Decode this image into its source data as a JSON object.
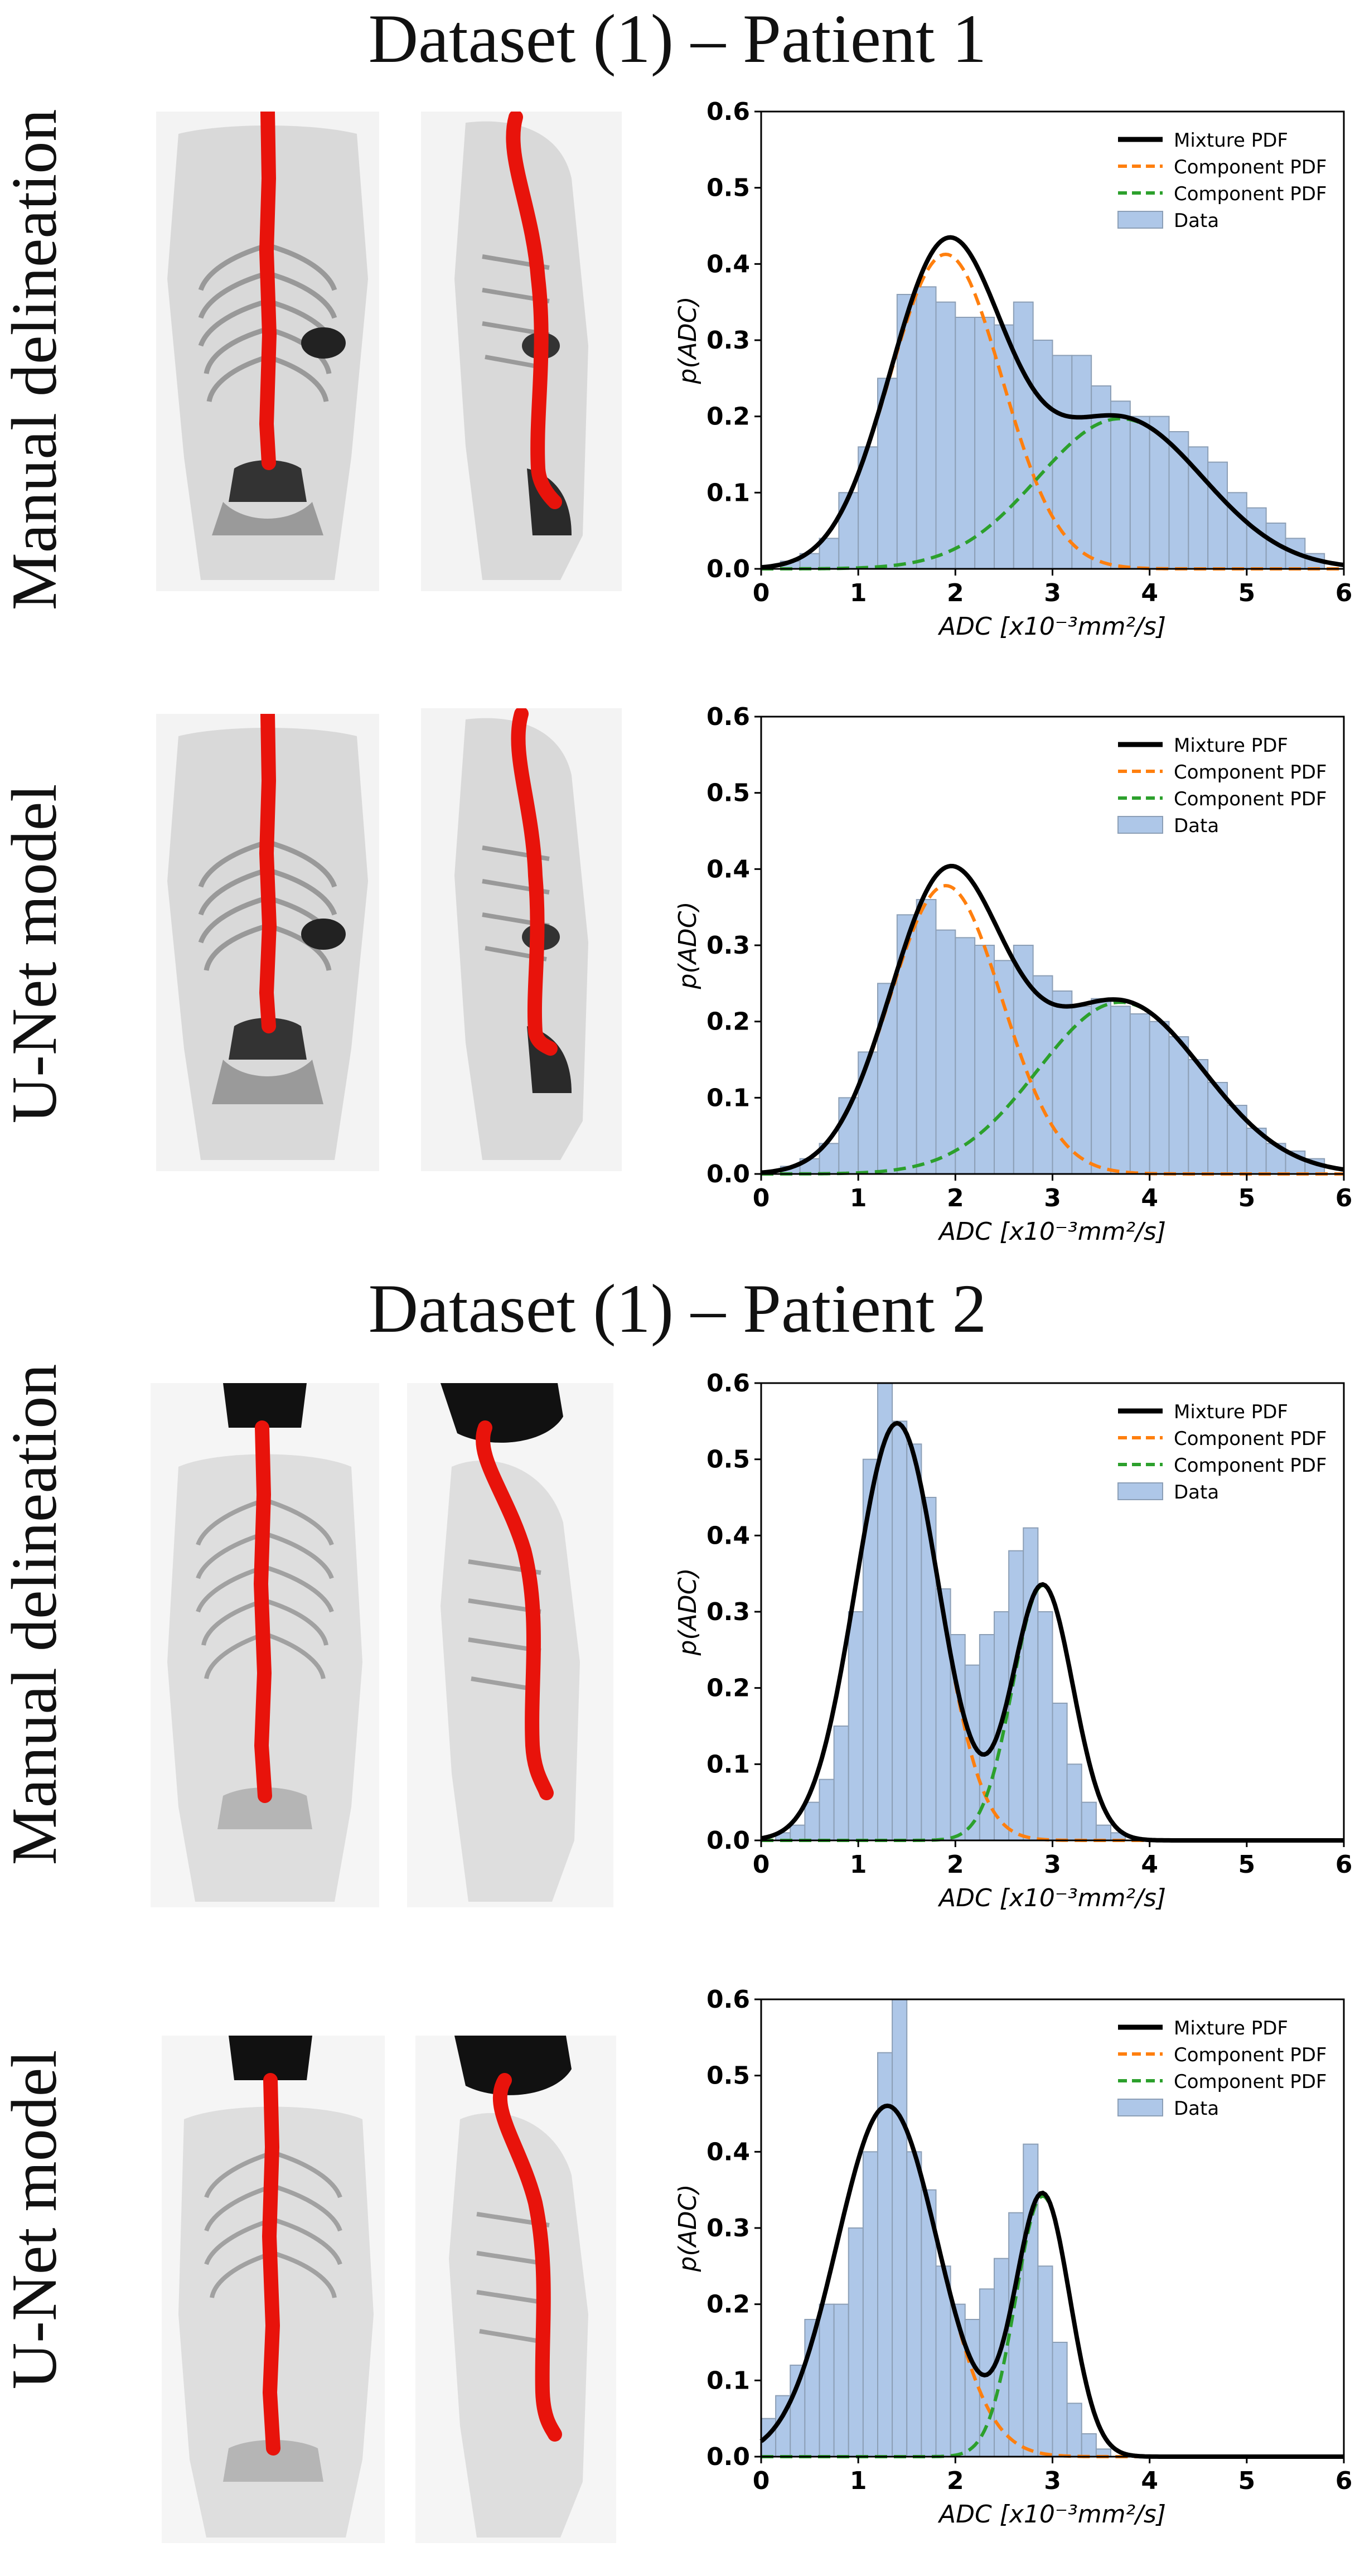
{
  "titles": {
    "patient1": "Dataset (1) – Patient 1",
    "patient2": "Dataset (1) – Patient 2"
  },
  "row_labels": {
    "manual": "Manual delineation",
    "unet": "U-Net model"
  },
  "colors": {
    "mixture": "#000000",
    "component1": "#ff7f0e",
    "component2": "#2ca02c",
    "bar_fill": "#aec7e8",
    "bar_edge": "#8c9fb6",
    "spine": "#e8130b"
  },
  "chart_data": [
    {
      "id": "p1-manual",
      "type": "bar",
      "xlabel": "ADC [x10⁻³mm²/s]",
      "ylabel": "p(ADC)",
      "xlim": [
        0,
        6
      ],
      "ylim": [
        0,
        0.6
      ],
      "xticks": [
        "0",
        "1",
        "2",
        "3",
        "4",
        "5",
        "6"
      ],
      "yticks": [
        "0.0",
        "0.1",
        "0.2",
        "0.3",
        "0.4",
        "0.5",
        "0.6"
      ],
      "legend": [
        "Mixture PDF",
        "Component PDF",
        "Component PDF",
        "Data"
      ],
      "bin_start": 0.2,
      "bin_width": 0.2,
      "values": [
        0.01,
        0.02,
        0.04,
        0.1,
        0.16,
        0.25,
        0.36,
        0.37,
        0.35,
        0.33,
        0.33,
        0.32,
        0.35,
        0.3,
        0.28,
        0.28,
        0.24,
        0.22,
        0.2,
        0.2,
        0.18,
        0.16,
        0.14,
        0.1,
        0.08,
        0.06,
        0.04,
        0.02
      ],
      "components": [
        {
          "w": 0.6,
          "mu": 1.9,
          "sigma": 0.58
        },
        {
          "w": 0.42,
          "mu": 3.7,
          "sigma": 0.85
        }
      ]
    },
    {
      "id": "p1-unet",
      "type": "bar",
      "xlabel": "ADC [x10⁻³mm²/s]",
      "ylabel": "p(ADC)",
      "xlim": [
        0,
        6
      ],
      "ylim": [
        0,
        0.6
      ],
      "xticks": [
        "0",
        "1",
        "2",
        "3",
        "4",
        "5",
        "6"
      ],
      "yticks": [
        "0.0",
        "0.1",
        "0.2",
        "0.3",
        "0.4",
        "0.5",
        "0.6"
      ],
      "legend": [
        "Mixture PDF",
        "Component PDF",
        "Component PDF",
        "Data"
      ],
      "bin_start": 0.2,
      "bin_width": 0.2,
      "values": [
        0.01,
        0.02,
        0.04,
        0.1,
        0.16,
        0.25,
        0.34,
        0.36,
        0.32,
        0.31,
        0.3,
        0.28,
        0.3,
        0.26,
        0.24,
        0.22,
        0.23,
        0.22,
        0.21,
        0.2,
        0.18,
        0.15,
        0.12,
        0.09,
        0.06,
        0.04,
        0.03,
        0.02
      ],
      "components": [
        {
          "w": 0.55,
          "mu": 1.9,
          "sigma": 0.58
        },
        {
          "w": 0.48,
          "mu": 3.7,
          "sigma": 0.85
        }
      ]
    },
    {
      "id": "p2-manual",
      "type": "bar",
      "xlabel": "ADC [x10⁻³mm²/s]",
      "ylabel": "p(ADC)",
      "xlim": [
        0,
        6
      ],
      "ylim": [
        0,
        0.6
      ],
      "xticks": [
        "0",
        "1",
        "2",
        "3",
        "4",
        "5",
        "6"
      ],
      "yticks": [
        "0.0",
        "0.1",
        "0.2",
        "0.3",
        "0.4",
        "0.5",
        "0.6"
      ],
      "legend": [
        "Mixture PDF",
        "Component PDF",
        "Component PDF",
        "Data"
      ],
      "bin_start": 0.0,
      "bin_width": 0.15,
      "values": [
        0.0,
        0.01,
        0.02,
        0.05,
        0.08,
        0.15,
        0.3,
        0.5,
        0.6,
        0.55,
        0.52,
        0.45,
        0.33,
        0.27,
        0.23,
        0.27,
        0.3,
        0.38,
        0.41,
        0.3,
        0.18,
        0.1,
        0.05,
        0.02,
        0.01,
        0.0,
        0.0
      ],
      "components": [
        {
          "w": 0.59,
          "mu": 1.4,
          "sigma": 0.43
        },
        {
          "w": 0.26,
          "mu": 2.9,
          "sigma": 0.31
        }
      ]
    },
    {
      "id": "p2-unet",
      "type": "bar",
      "xlabel": "ADC [x10⁻³mm²/s]",
      "ylabel": "p(ADC)",
      "xlim": [
        0,
        6
      ],
      "ylim": [
        0,
        0.6
      ],
      "xticks": [
        "0",
        "1",
        "2",
        "3",
        "4",
        "5",
        "6"
      ],
      "yticks": [
        "0.0",
        "0.1",
        "0.2",
        "0.3",
        "0.4",
        "0.5",
        "0.6"
      ],
      "legend": [
        "Mixture PDF",
        "Component PDF",
        "Component PDF",
        "Data"
      ],
      "bin_start": 0.0,
      "bin_width": 0.15,
      "values": [
        0.05,
        0.08,
        0.12,
        0.18,
        0.2,
        0.2,
        0.3,
        0.4,
        0.53,
        0.6,
        0.4,
        0.35,
        0.25,
        0.2,
        0.18,
        0.22,
        0.26,
        0.32,
        0.41,
        0.25,
        0.15,
        0.07,
        0.03,
        0.01,
        0.0,
        0.0,
        0.0
      ],
      "components": [
        {
          "w": 0.6,
          "mu": 1.3,
          "sigma": 0.52
        },
        {
          "w": 0.24,
          "mu": 2.9,
          "sigma": 0.28
        }
      ]
    }
  ]
}
